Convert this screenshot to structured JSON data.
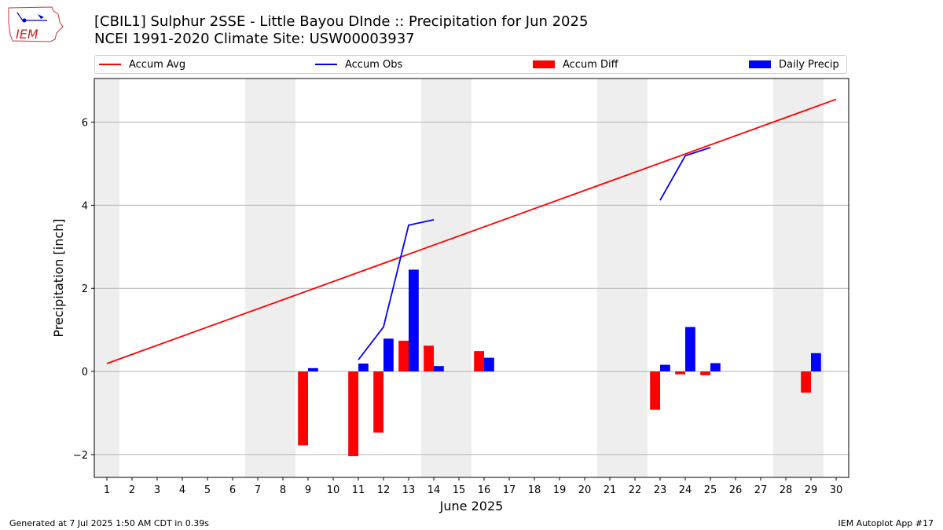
{
  "title_line1": "[CBIL1] Sulphur 2SSE - Little Bayou DInde :: Precipitation for Jun 2025",
  "title_line2": "NCEI 1991-2020 Climate Site: USW00003937",
  "logo_text": "IEM",
  "legend": {
    "accum_avg": "Accum Avg",
    "accum_obs": "Accum Obs",
    "accum_diff": "Accum Diff",
    "daily_precip": "Daily Precip"
  },
  "footer_left": "Generated at 7 Jul 2025 1:50 AM CDT in 0.39s",
  "footer_right": "IEM Autoplot App #17",
  "colors": {
    "avg": "#ff0000",
    "obs": "#0000ff",
    "diff": "#ff0000",
    "daily": "#0000ff",
    "weekend": "#eeeeee"
  },
  "chart_data": {
    "type": "bar",
    "xlabel": "June 2025",
    "ylabel": "Precipitation [inch]",
    "xlim": [
      0.5,
      30.5
    ],
    "ylim": [
      -2.55,
      7.05
    ],
    "yticks": [
      -2,
      0,
      2,
      4,
      6
    ],
    "ytick_labels": [
      "−2",
      "0",
      "2",
      "4",
      "6"
    ],
    "days": [
      1,
      2,
      3,
      4,
      5,
      6,
      7,
      8,
      9,
      10,
      11,
      12,
      13,
      14,
      15,
      16,
      17,
      18,
      19,
      20,
      21,
      22,
      23,
      24,
      25,
      26,
      27,
      28,
      29,
      30
    ],
    "weekend_spans": [
      [
        0.5,
        1.5
      ],
      [
        6.5,
        8.5
      ],
      [
        13.5,
        15.5
      ],
      [
        20.5,
        22.5
      ],
      [
        27.5,
        29.5
      ]
    ],
    "accum_avg": {
      "start": [
        1,
        0.19
      ],
      "end": [
        30,
        6.55
      ]
    },
    "accum_obs_segments": [
      [
        [
          11,
          0.28
        ],
        [
          12,
          1.07
        ],
        [
          13,
          3.52
        ],
        [
          14,
          3.65
        ]
      ],
      [
        [
          23,
          4.12
        ],
        [
          24,
          5.19
        ],
        [
          25,
          5.39
        ]
      ]
    ],
    "accum_diff": [
      {
        "day": 9,
        "value": -1.78
      },
      {
        "day": 11,
        "value": -2.04
      },
      {
        "day": 12,
        "value": -1.47
      },
      {
        "day": 13,
        "value": 0.74
      },
      {
        "day": 14,
        "value": 0.62
      },
      {
        "day": 16,
        "value": 0.49
      },
      {
        "day": 23,
        "value": -0.92
      },
      {
        "day": 24,
        "value": -0.07
      },
      {
        "day": 25,
        "value": -0.09
      },
      {
        "day": 29,
        "value": -0.51
      }
    ],
    "daily_precip": [
      {
        "day": 9,
        "value": 0.08
      },
      {
        "day": 11,
        "value": 0.19
      },
      {
        "day": 12,
        "value": 0.79
      },
      {
        "day": 13,
        "value": 2.45
      },
      {
        "day": 14,
        "value": 0.13
      },
      {
        "day": 16,
        "value": 0.33
      },
      {
        "day": 23,
        "value": 0.16
      },
      {
        "day": 24,
        "value": 1.07
      },
      {
        "day": 25,
        "value": 0.2
      },
      {
        "day": 29,
        "value": 0.44
      }
    ]
  }
}
